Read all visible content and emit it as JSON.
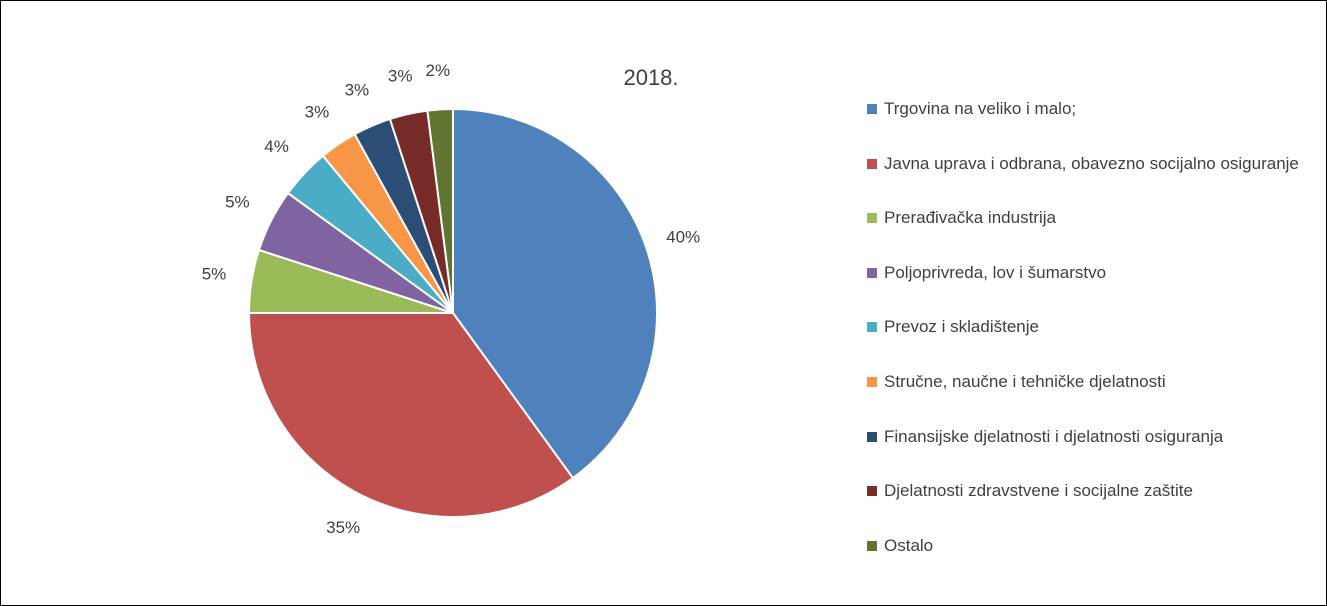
{
  "chart_data": {
    "type": "pie",
    "title": "2018.",
    "categories": [
      "Trgovina na veliko i malo;",
      "Javna uprava i odbrana, obavezno socijalno osiguranje",
      "Prerađivačka industrija",
      "Poljoprivreda, lov i šumarstvo",
      "Prevoz i skladištenje",
      "Stručne, naučne i tehničke djelatnosti",
      "Finansijske djelatnosti i djelatnosti osiguranja",
      "Djelatnosti zdravstvene i socijalne zaštite",
      "Ostalo"
    ],
    "values": [
      40,
      35,
      5,
      5,
      4,
      3,
      3,
      3,
      2
    ],
    "value_labels": [
      "40%",
      "35%",
      "5%",
      "5%",
      "4%",
      "3%",
      "3%",
      "3%",
      "2%"
    ],
    "colors": [
      "#4f81bd",
      "#c0504d",
      "#9bbb59",
      "#8064a2",
      "#4bacc6",
      "#f79646",
      "#2c4d75",
      "#772c2a",
      "#5f7530"
    ],
    "legend": "right"
  }
}
